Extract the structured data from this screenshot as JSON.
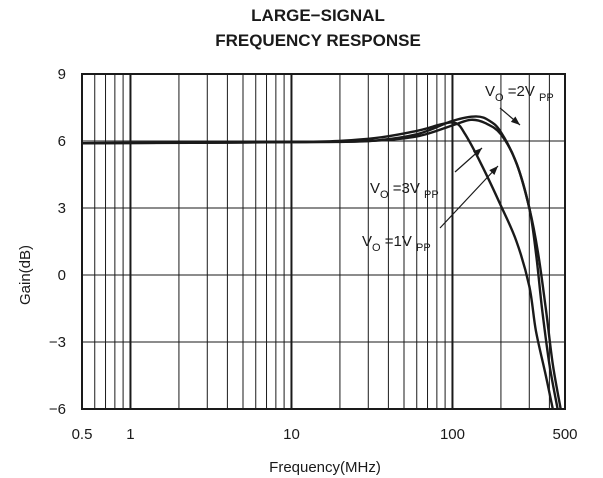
{
  "chart_data": {
    "type": "line",
    "title": [
      "LARGE−SIGNAL",
      "FREQUENCY RESPONSE"
    ],
    "xlabel": "Frequency(MHz)",
    "ylabel": "Gain(dB)",
    "xscale": "log",
    "xlim": [
      0.5,
      500
    ],
    "ylim": [
      -6,
      9
    ],
    "xticks": [
      0.5,
      1,
      10,
      100,
      500
    ],
    "xtick_labels": [
      "0.5",
      "1",
      "10",
      "100",
      "500"
    ],
    "yticks": [
      9,
      6,
      3,
      0,
      -3,
      -6
    ],
    "ytick_labels": [
      "9",
      "6",
      "3",
      "0",
      "−3",
      "−6"
    ],
    "grid": true,
    "series": [
      {
        "name": "VO=1VPP",
        "x": [
          0.5,
          10,
          30,
          60,
          85,
          105,
          120,
          150,
          200,
          250,
          300,
          330,
          380,
          420
        ],
        "y": [
          5.9,
          5.95,
          6.1,
          6.45,
          6.75,
          6.8,
          6.3,
          5.0,
          3.1,
          1.5,
          -0.5,
          -2.5,
          -4.5,
          -6.0
        ]
      },
      {
        "name": "VO=2VPP",
        "x": [
          0.5,
          10,
          30,
          60,
          100,
          140,
          170,
          200,
          250,
          300,
          330,
          360,
          400,
          450
        ],
        "y": [
          5.9,
          5.95,
          6.0,
          6.3,
          6.9,
          7.1,
          6.9,
          6.4,
          5.0,
          3.0,
          1.0,
          -1.5,
          -4.0,
          -6.0
        ]
      },
      {
        "name": "VO=3VPP",
        "x": [
          0.5,
          10,
          30,
          60,
          100,
          130,
          160,
          200,
          250,
          300,
          340,
          380,
          420,
          470
        ],
        "y": [
          5.9,
          5.95,
          6.0,
          6.2,
          6.7,
          6.95,
          6.8,
          6.3,
          5.0,
          3.0,
          1.0,
          -1.5,
          -4.0,
          -6.0
        ]
      }
    ],
    "annotations": [
      {
        "main": "V",
        "sub": "O",
        "rest": " =2V ",
        "sub2": "PP"
      },
      {
        "main": "V",
        "sub": "O",
        "rest": " =3V ",
        "sub2": "PP"
      },
      {
        "main": "V",
        "sub": "O",
        "rest": " =1V ",
        "sub2": "PP"
      }
    ]
  }
}
